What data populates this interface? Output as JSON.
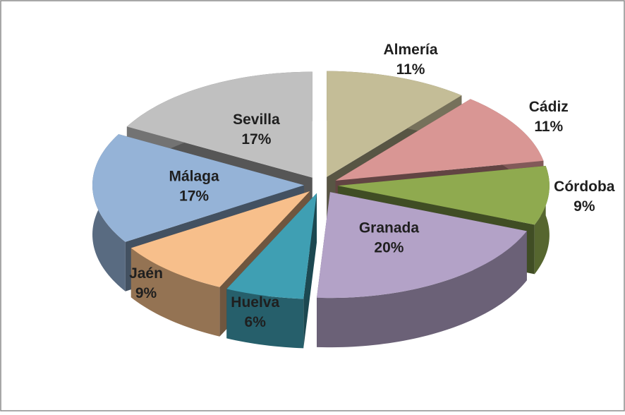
{
  "chart_data": {
    "type": "pie",
    "categories": [
      "Almería",
      "Cádiz",
      "Córdoba",
      "Granada",
      "Huelva",
      "Jaén",
      "Málaga",
      "Sevilla"
    ],
    "values": [
      11,
      11,
      9,
      20,
      6,
      9,
      17,
      17
    ],
    "value_labels": [
      "11%",
      "11%",
      "9%",
      "20%",
      "6%",
      "9%",
      "17%",
      "17%"
    ],
    "colors": [
      "#c4bd97",
      "#d99694",
      "#8faa4f",
      "#b3a2c7",
      "#3f9fb3",
      "#f7bf8b",
      "#95b3d7",
      "#c0c0c0"
    ]
  }
}
